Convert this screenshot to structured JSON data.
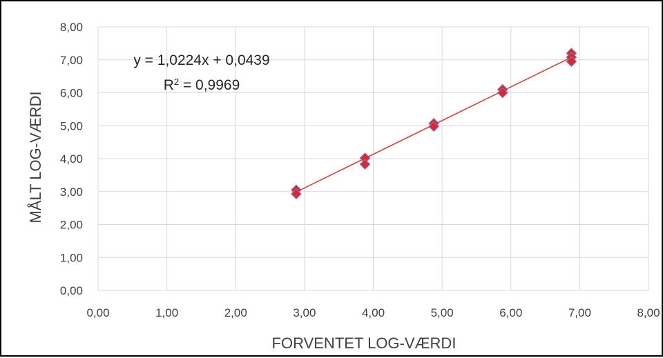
{
  "chart_data": {
    "type": "scatter",
    "xlabel": "FORVENTET LOG-VÆRDI",
    "ylabel": "MÅLT LOG-VÆRDI",
    "xlim": [
      0,
      8
    ],
    "ylim": [
      0,
      8
    ],
    "x_ticks": [
      "0,00",
      "1,00",
      "2,00",
      "3,00",
      "4,00",
      "5,00",
      "6,00",
      "7,00",
      "8,00"
    ],
    "y_ticks": [
      "0,00",
      "1,00",
      "2,00",
      "3,00",
      "4,00",
      "5,00",
      "6,00",
      "7,00",
      "8,00"
    ],
    "grid": true,
    "marker_color": "#e8222a",
    "marker_edge_color": "#7f6fa8",
    "trendline_color": "#d9443a",
    "series": [
      {
        "points": [
          {
            "x": 2.88,
            "y": 3.05
          },
          {
            "x": 2.88,
            "y": 2.93
          },
          {
            "x": 3.88,
            "y": 4.02
          },
          {
            "x": 3.88,
            "y": 3.83
          },
          {
            "x": 4.88,
            "y": 5.07
          },
          {
            "x": 4.88,
            "y": 4.98
          },
          {
            "x": 5.88,
            "y": 6.1
          },
          {
            "x": 5.88,
            "y": 6.0
          },
          {
            "x": 6.88,
            "y": 7.2
          },
          {
            "x": 6.88,
            "y": 7.08
          },
          {
            "x": 6.88,
            "y": 6.95
          }
        ]
      }
    ],
    "trendline": {
      "slope": 1.0224,
      "intercept": 0.0439,
      "x_range": [
        2.88,
        6.88
      ],
      "equation": "y = 1,0224x + 0,0439",
      "r2_label": "R",
      "r2_sup": "2",
      "r2_value": " = 0,9969"
    }
  }
}
